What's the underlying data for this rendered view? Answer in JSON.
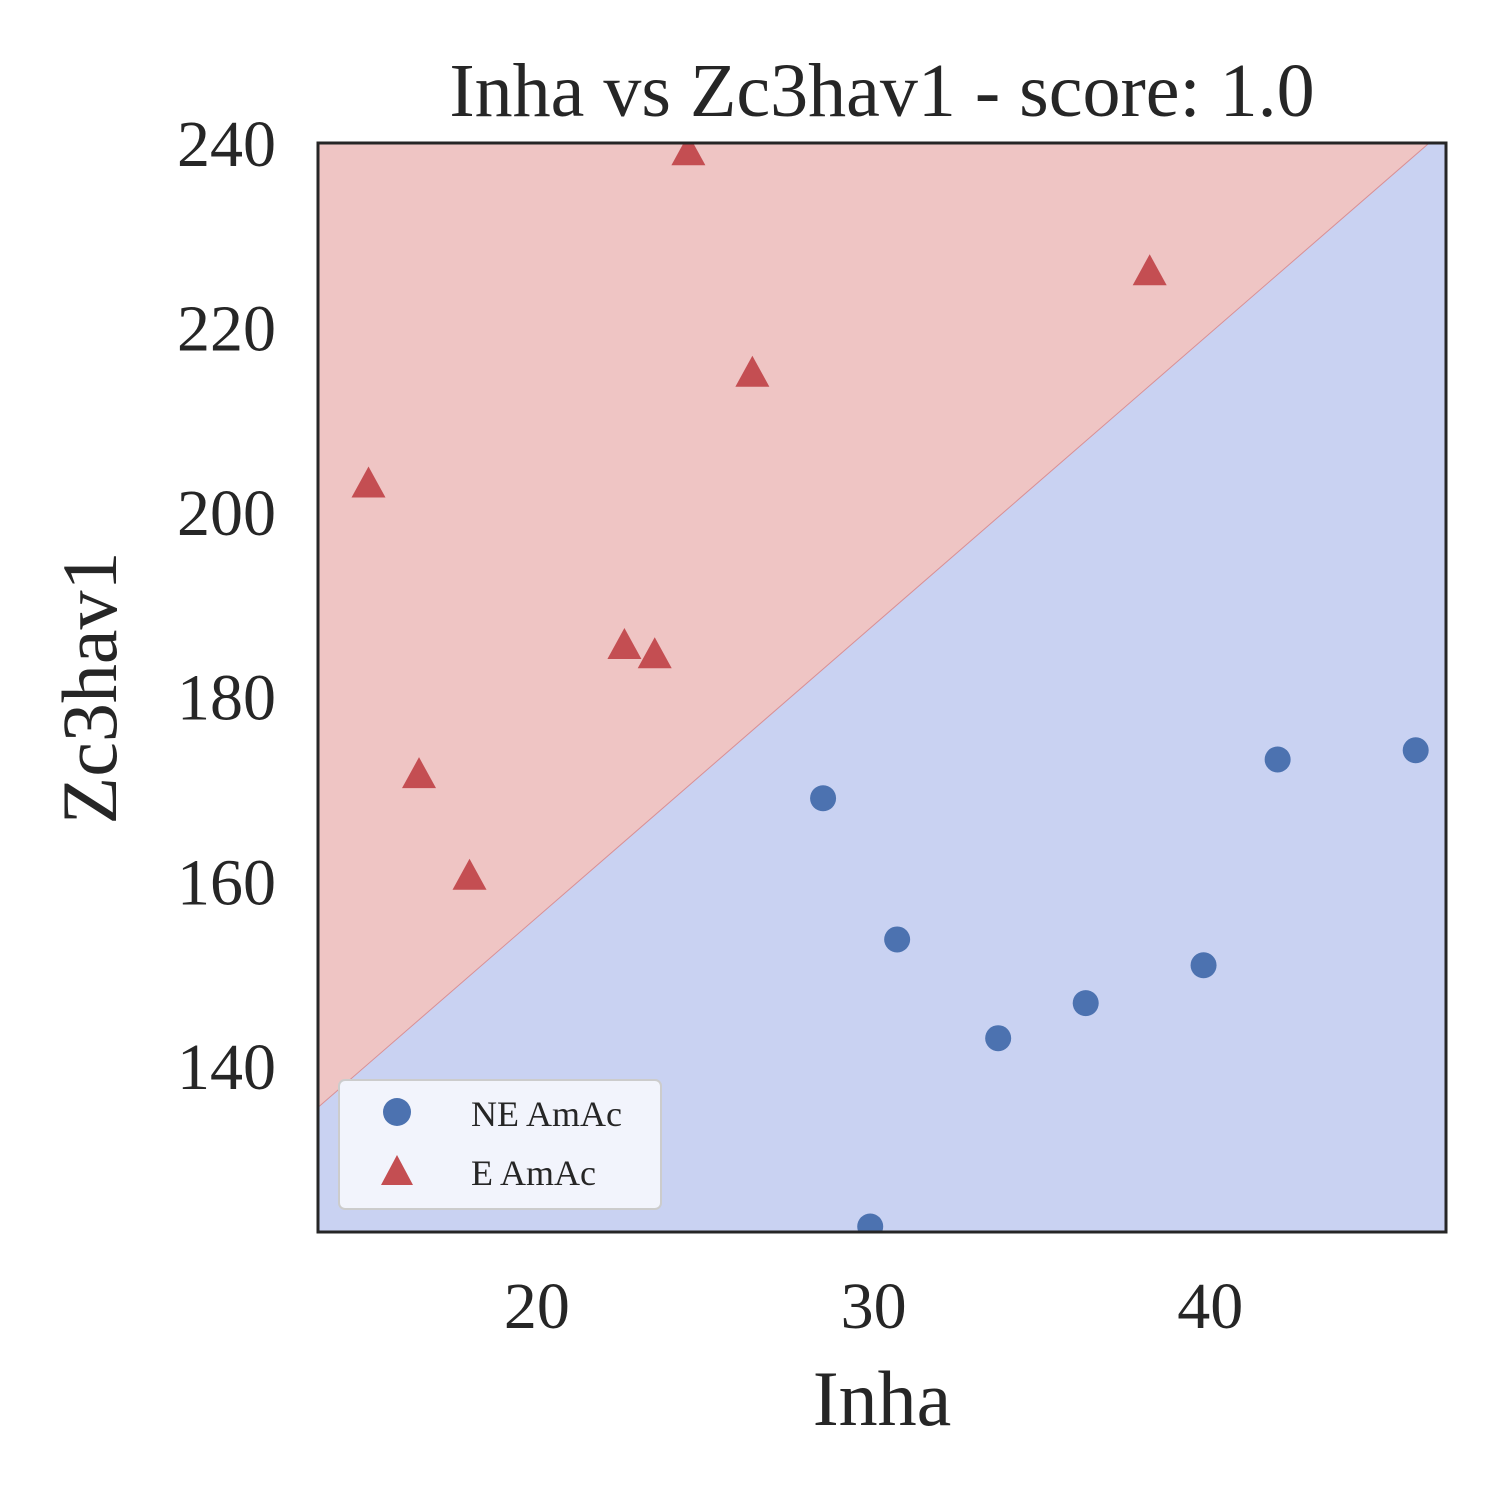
{
  "chart_data": {
    "type": "scatter",
    "title": "Inha vs Zc3hav1 - score: 1.0",
    "xlabel": "Inha",
    "ylabel": "Zc3hav1",
    "xlim": [
      13.5,
      47.0
    ],
    "ylim": [
      122.0,
      240.0
    ],
    "xticks": [
      20,
      30,
      40
    ],
    "yticks": [
      140,
      160,
      180,
      200,
      220,
      240
    ],
    "grid": false,
    "legend_position": "lower-left",
    "regions": {
      "upper_color": "#efc5c4",
      "lower_color": "#c9d2f2",
      "boundary": [
        [
          13.5,
          135.5
        ],
        [
          46.5,
          240.0
        ]
      ]
    },
    "series": [
      {
        "name": "NE AmAc",
        "marker": "circle",
        "color": "#4c72b0",
        "points": [
          [
            28.5,
            169.0
          ],
          [
            30.7,
            153.7
          ],
          [
            29.9,
            122.6
          ],
          [
            33.7,
            143.0
          ],
          [
            36.3,
            146.8
          ],
          [
            39.8,
            150.9
          ],
          [
            42.0,
            173.2
          ],
          [
            46.1,
            174.2
          ]
        ]
      },
      {
        "name": "E AmAc",
        "marker": "triangle",
        "color": "#c44e52",
        "points": [
          [
            15.0,
            203.0
          ],
          [
            16.5,
            171.5
          ],
          [
            18.0,
            160.5
          ],
          [
            22.6,
            185.5
          ],
          [
            23.5,
            184.5
          ],
          [
            24.5,
            239.0
          ],
          [
            26.4,
            215.0
          ],
          [
            38.2,
            226.0
          ]
        ]
      }
    ]
  }
}
